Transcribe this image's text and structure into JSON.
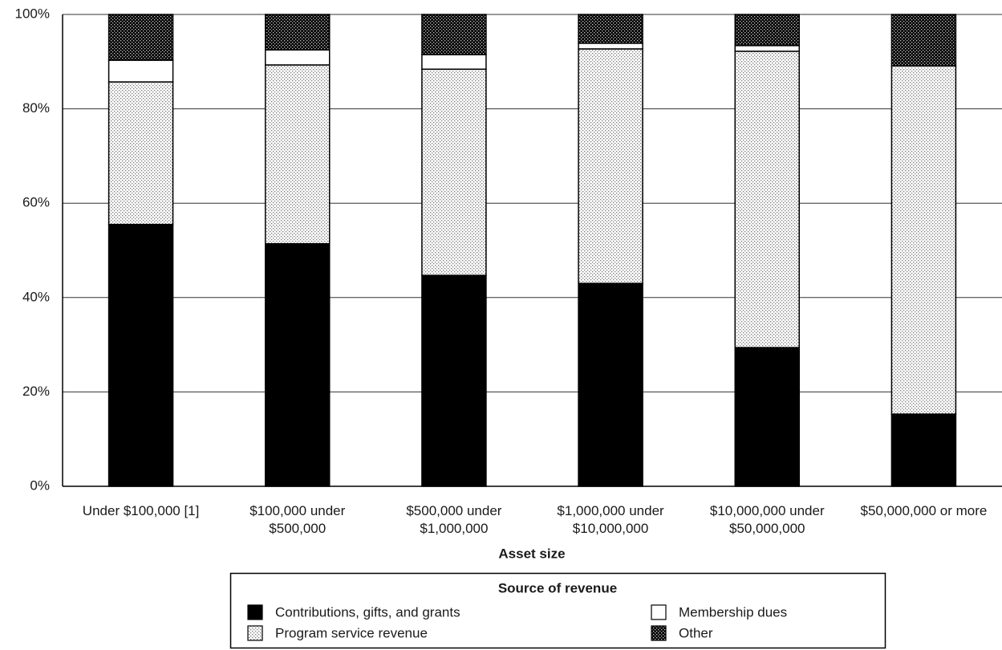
{
  "chart_data": {
    "type": "stacked_bar",
    "categories": [
      "Under $100,000 [1]",
      "$100,000 under $500,000",
      "$500,000 under $1,000,000",
      "$1,000,000 under $10,000,000",
      "$10,000,000 under $50,000,000",
      "$50,000,000 or more"
    ],
    "series": [
      {
        "name": "Contributions, gifts, and grants",
        "color": "#000000",
        "pattern": "solid",
        "values": [
          55.5,
          51.4,
          44.7,
          43.0,
          29.4,
          15.3
        ]
      },
      {
        "name": "Program service revenue",
        "color": "#ffffff",
        "pattern": "dots",
        "values": [
          30.2,
          37.9,
          43.7,
          49.7,
          62.8,
          73.8
        ]
      },
      {
        "name": "Membership dues",
        "color": "#ffffff",
        "pattern": "solid",
        "values": [
          4.6,
          3.2,
          3.1,
          1.2,
          1.2,
          0
        ]
      },
      {
        "name": "Other",
        "color": "#000000",
        "pattern": "checker",
        "values": [
          9.7,
          7.5,
          8.5,
          6.1,
          6.6,
          10.9
        ]
      }
    ],
    "xlabel": "Asset size",
    "legend_title": "Source of revenue",
    "ylim": [
      0,
      100
    ],
    "yticks": [
      {
        "value": 0,
        "label": "0%"
      },
      {
        "value": 20,
        "label": "20%"
      },
      {
        "value": 40,
        "label": "40%"
      },
      {
        "value": 60,
        "label": "60%"
      },
      {
        "value": 80,
        "label": "80%"
      },
      {
        "value": 100,
        "label": "100%"
      }
    ],
    "grid": true
  }
}
